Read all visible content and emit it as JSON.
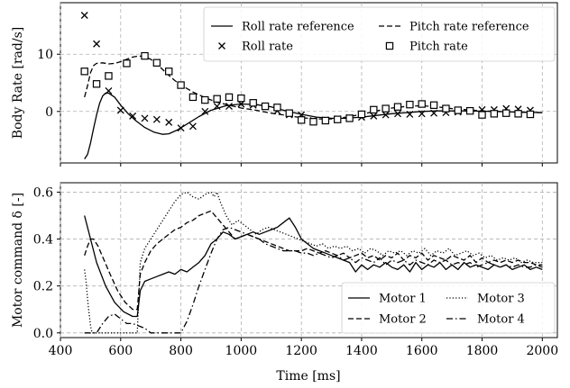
{
  "chart_data": [
    {
      "type": "line",
      "title": "",
      "xlabel": "",
      "ylabel": "Body Rate [rad/s]",
      "xlim": [
        400,
        2050
      ],
      "ylim": [
        -9,
        19
      ],
      "yticks": [
        0,
        10
      ],
      "xticks": [
        400,
        600,
        800,
        1000,
        1200,
        1400,
        1600,
        1800,
        2000
      ],
      "grid": true,
      "legend": {
        "placement": "top-right",
        "columns": 2
      },
      "series": [
        {
          "name": "Roll rate reference",
          "style": "solid",
          "marker": "none",
          "x": [
            480,
            490,
            500,
            510,
            520,
            530,
            540,
            550,
            560,
            580,
            600,
            625,
            650,
            680,
            710,
            740,
            760,
            790,
            820,
            860,
            900,
            950,
            1000,
            1050,
            1100,
            1150,
            1200,
            1250,
            1300,
            1350,
            1400,
            1450,
            1500,
            1550,
            1600,
            1650,
            1700,
            1750,
            1800,
            1850,
            1900,
            1950,
            2000
          ],
          "y": [
            -8.3,
            -7.5,
            -5.5,
            -3,
            -0.6,
            1.4,
            2.7,
            3.2,
            3.2,
            2.5,
            1.1,
            -0.4,
            -1.6,
            -2.8,
            -3.6,
            -4.0,
            -3.9,
            -3.2,
            -2.2,
            -0.9,
            0.2,
            1.0,
            1.3,
            1.2,
            0.8,
            0.1,
            -0.5,
            -1.0,
            -1.2,
            -1.2,
            -1.0,
            -0.7,
            -0.4,
            -0.2,
            0,
            0.1,
            0.1,
            0.1,
            0.05,
            0,
            -0.1,
            -0.15,
            -0.2
          ]
        },
        {
          "name": "Pitch rate reference",
          "style": "dashed",
          "marker": "none",
          "x": [
            480,
            490,
            500,
            510,
            520,
            540,
            560,
            580,
            600,
            620,
            640,
            660,
            680,
            700,
            720,
            740,
            760,
            780,
            800,
            840,
            880,
            920,
            960,
            1000,
            1050,
            1100,
            1150,
            1200,
            1250,
            1300,
            1350,
            1400,
            1450,
            1500,
            1550,
            1600,
            1650,
            1700,
            1750,
            1800,
            1850,
            1900,
            1950,
            2000
          ],
          "y": [
            2.5,
            4.5,
            6.8,
            8.0,
            8.4,
            8.5,
            8.3,
            8.4,
            8.7,
            9.1,
            9.5,
            9.7,
            9.6,
            9.1,
            8.3,
            7.3,
            6.3,
            5.4,
            4.6,
            3.4,
            2.4,
            1.6,
            1.1,
            0.6,
            0.2,
            -0.3,
            -0.7,
            -1.1,
            -1.3,
            -1.3,
            -1.0,
            -0.5,
            0.1,
            0.6,
            0.9,
            1.0,
            0.8,
            0.5,
            0.3,
            0.1,
            0,
            -0.1,
            -0.15,
            -0.2
          ]
        },
        {
          "name": "Roll rate",
          "style": "none",
          "marker": "x",
          "x": [
            480,
            520,
            560,
            600,
            640,
            680,
            720,
            760,
            800,
            840,
            880,
            920,
            960,
            1000,
            1040,
            1080,
            1120,
            1160,
            1200,
            1240,
            1280,
            1320,
            1360,
            1400,
            1440,
            1480,
            1520,
            1560,
            1600,
            1640,
            1680,
            1720,
            1760,
            1800,
            1840,
            1880,
            1920,
            1960
          ],
          "y": [
            16.8,
            11.8,
            3.6,
            0.2,
            -0.8,
            -1.2,
            -1.4,
            -1.9,
            -2.9,
            -2.6,
            0,
            0.9,
            0.9,
            1.3,
            1.1,
            0.8,
            0.1,
            -0.6,
            -0.6,
            -1.6,
            -1.5,
            -1.3,
            -1.1,
            -1.0,
            -0.8,
            -0.6,
            -0.4,
            -0.5,
            -0.4,
            -0.3,
            -0.2,
            -0.1,
            0.1,
            0.3,
            0.3,
            0.5,
            0.4,
            0.2
          ]
        },
        {
          "name": "Pitch rate",
          "style": "none",
          "marker": "square",
          "x": [
            480,
            520,
            560,
            620,
            680,
            720,
            760,
            800,
            840,
            880,
            920,
            960,
            1000,
            1040,
            1080,
            1120,
            1160,
            1200,
            1240,
            1280,
            1320,
            1360,
            1400,
            1440,
            1480,
            1520,
            1560,
            1600,
            1640,
            1680,
            1720,
            1760,
            1800,
            1840,
            1880,
            1920,
            1960
          ],
          "y": [
            7.0,
            4.8,
            6.2,
            8.4,
            9.7,
            8.5,
            7.0,
            4.6,
            2.5,
            2.0,
            2.2,
            2.5,
            2.3,
            1.5,
            0.9,
            0.7,
            -0.3,
            -1.5,
            -1.8,
            -1.6,
            -1.4,
            -1.2,
            -0.5,
            0.3,
            0.5,
            0.8,
            1.2,
            1.3,
            1.1,
            0.5,
            0.2,
            0.1,
            -0.6,
            -0.4,
            -0.3,
            -0.4,
            -0.5
          ]
        }
      ]
    },
    {
      "type": "line",
      "title": "",
      "xlabel": "Time [ms]",
      "ylabel": "Motor command δ [-]",
      "xlim": [
        400,
        2050
      ],
      "ylim": [
        -0.02,
        0.64
      ],
      "yticks": [
        0.0,
        0.2,
        0.4,
        0.6
      ],
      "xticks": [
        400,
        600,
        800,
        1000,
        1200,
        1400,
        1600,
        1800,
        2000
      ],
      "grid": true,
      "legend": {
        "placement": "bottom-right",
        "columns": 2
      },
      "series": [
        {
          "name": "Motor 1",
          "style": "solid",
          "x": [
            480,
            500,
            520,
            550,
            580,
            610,
            640,
            655,
            665,
            680,
            700,
            720,
            740,
            760,
            780,
            800,
            820,
            840,
            860,
            880,
            900,
            920,
            940,
            960,
            980,
            1000,
            1020,
            1040,
            1060,
            1080,
            1100,
            1120,
            1140,
            1160,
            1180,
            1200,
            1220,
            1240,
            1260,
            1280,
            1300,
            1320,
            1340,
            1360,
            1380,
            1400,
            1420,
            1440,
            1460,
            1480,
            1500,
            1520,
            1540,
            1560,
            1580,
            1600,
            1620,
            1640,
            1660,
            1680,
            1700,
            1720,
            1740,
            1760,
            1780,
            1800,
            1820,
            1840,
            1860,
            1880,
            1900,
            1920,
            1940,
            1960,
            1980,
            2000
          ],
          "y": [
            0.5,
            0.4,
            0.3,
            0.2,
            0.13,
            0.09,
            0.07,
            0.07,
            0.18,
            0.22,
            0.23,
            0.24,
            0.25,
            0.26,
            0.25,
            0.27,
            0.26,
            0.28,
            0.3,
            0.33,
            0.38,
            0.4,
            0.43,
            0.42,
            0.4,
            0.41,
            0.42,
            0.43,
            0.42,
            0.43,
            0.44,
            0.45,
            0.47,
            0.49,
            0.45,
            0.4,
            0.38,
            0.36,
            0.35,
            0.34,
            0.33,
            0.32,
            0.31,
            0.3,
            0.26,
            0.29,
            0.27,
            0.29,
            0.28,
            0.3,
            0.28,
            0.27,
            0.29,
            0.26,
            0.3,
            0.27,
            0.29,
            0.28,
            0.3,
            0.27,
            0.29,
            0.27,
            0.3,
            0.28,
            0.29,
            0.28,
            0.27,
            0.29,
            0.28,
            0.29,
            0.27,
            0.28,
            0.29,
            0.27,
            0.28,
            0.27
          ]
        },
        {
          "name": "Motor 2",
          "style": "dashed",
          "x": [
            480,
            490,
            500,
            510,
            525,
            545,
            565,
            590,
            615,
            640,
            655,
            665,
            680,
            700,
            720,
            740,
            760,
            780,
            800,
            820,
            840,
            860,
            880,
            900,
            920,
            940,
            960,
            980,
            1000,
            1020,
            1040,
            1060,
            1080,
            1100,
            1120,
            1140,
            1160,
            1180,
            1200,
            1220,
            1240,
            1260,
            1280,
            1300,
            1320,
            1340,
            1360,
            1380,
            1400,
            1420,
            1440,
            1460,
            1480,
            1500,
            1520,
            1540,
            1560,
            1580,
            1600,
            1620,
            1640,
            1660,
            1680,
            1700,
            1720,
            1740,
            1760,
            1780,
            1800,
            1820,
            1840,
            1860,
            1880,
            1900,
            1920,
            1940,
            1960,
            1980,
            2000
          ],
          "y": [
            0.33,
            0.37,
            0.4,
            0.4,
            0.37,
            0.31,
            0.25,
            0.18,
            0.13,
            0.1,
            0.1,
            0.25,
            0.3,
            0.35,
            0.38,
            0.4,
            0.42,
            0.44,
            0.45,
            0.47,
            0.48,
            0.5,
            0.51,
            0.52,
            0.49,
            0.46,
            0.43,
            0.4,
            0.41,
            0.42,
            0.41,
            0.4,
            0.39,
            0.38,
            0.37,
            0.36,
            0.35,
            0.35,
            0.35,
            0.36,
            0.35,
            0.34,
            0.35,
            0.34,
            0.33,
            0.34,
            0.32,
            0.33,
            0.34,
            0.32,
            0.33,
            0.31,
            0.33,
            0.32,
            0.34,
            0.31,
            0.33,
            0.32,
            0.34,
            0.31,
            0.33,
            0.32,
            0.31,
            0.33,
            0.32,
            0.31,
            0.33,
            0.3,
            0.32,
            0.3,
            0.31,
            0.3,
            0.31,
            0.3,
            0.31,
            0.3,
            0.3,
            0.29,
            0.29
          ]
        },
        {
          "name": "Motor 3",
          "style": "dotted",
          "x": [
            480,
            485,
            492,
            500,
            505,
            540,
            600,
            640,
            655,
            665,
            680,
            700,
            720,
            740,
            760,
            780,
            800,
            820,
            840,
            860,
            880,
            900,
            910,
            920,
            930,
            950,
            970,
            990,
            1010,
            1030,
            1050,
            1070,
            1090,
            1110,
            1130,
            1150,
            1170,
            1190,
            1210,
            1230,
            1250,
            1270,
            1290,
            1310,
            1330,
            1350,
            1370,
            1390,
            1410,
            1430,
            1450,
            1470,
            1490,
            1510,
            1530,
            1550,
            1570,
            1590,
            1610,
            1630,
            1650,
            1670,
            1690,
            1710,
            1730,
            1750,
            1770,
            1790,
            1810,
            1830,
            1850,
            1870,
            1890,
            1910,
            1930,
            1950,
            1970,
            2000
          ],
          "y": [
            0.27,
            0.22,
            0.12,
            0.03,
            0.0,
            0.0,
            0.0,
            0.0,
            0.0,
            0.3,
            0.36,
            0.4,
            0.44,
            0.48,
            0.52,
            0.56,
            0.59,
            0.6,
            0.58,
            0.57,
            0.59,
            0.6,
            0.58,
            0.6,
            0.56,
            0.5,
            0.46,
            0.48,
            0.46,
            0.44,
            0.42,
            0.44,
            0.45,
            0.44,
            0.43,
            0.42,
            0.41,
            0.4,
            0.39,
            0.38,
            0.37,
            0.38,
            0.36,
            0.37,
            0.36,
            0.37,
            0.35,
            0.36,
            0.34,
            0.36,
            0.35,
            0.33,
            0.35,
            0.34,
            0.35,
            0.33,
            0.35,
            0.34,
            0.36,
            0.33,
            0.35,
            0.34,
            0.36,
            0.33,
            0.34,
            0.35,
            0.33,
            0.34,
            0.32,
            0.33,
            0.31,
            0.32,
            0.31,
            0.32,
            0.3,
            0.31,
            0.3,
            0.3
          ]
        },
        {
          "name": "Motor 4",
          "style": "dashdot",
          "x": [
            480,
            520,
            540,
            560,
            580,
            600,
            620,
            640,
            660,
            680,
            700,
            720,
            740,
            760,
            780,
            800,
            820,
            840,
            860,
            880,
            900,
            920,
            940,
            960,
            980,
            1000,
            1020,
            1040,
            1060,
            1080,
            1100,
            1120,
            1140,
            1160,
            1180,
            1200,
            1220,
            1240,
            1260,
            1280,
            1300,
            1320,
            1340,
            1360,
            1380,
            1400,
            1420,
            1440,
            1460,
            1480,
            1500,
            1520,
            1540,
            1560,
            1580,
            1600,
            1620,
            1640,
            1660,
            1680,
            1700,
            1720,
            1740,
            1760,
            1780,
            1800,
            1820,
            1840,
            1860,
            1880,
            1900,
            1920,
            1940,
            1960,
            1980,
            2000
          ],
          "y": [
            0.0,
            0.0,
            0.04,
            0.07,
            0.08,
            0.06,
            0.04,
            0.04,
            0.03,
            0.02,
            0.0,
            0.0,
            0.0,
            0.0,
            0.0,
            0.0,
            0.05,
            0.12,
            0.2,
            0.27,
            0.34,
            0.4,
            0.44,
            0.45,
            0.44,
            0.43,
            0.42,
            0.41,
            0.4,
            0.38,
            0.37,
            0.36,
            0.35,
            0.35,
            0.35,
            0.34,
            0.34,
            0.33,
            0.34,
            0.33,
            0.32,
            0.33,
            0.31,
            0.32,
            0.3,
            0.32,
            0.31,
            0.3,
            0.32,
            0.29,
            0.31,
            0.3,
            0.31,
            0.29,
            0.31,
            0.3,
            0.29,
            0.31,
            0.3,
            0.31,
            0.29,
            0.3,
            0.29,
            0.3,
            0.28,
            0.29,
            0.3,
            0.29,
            0.28,
            0.29,
            0.28,
            0.29,
            0.28,
            0.28,
            0.29,
            0.28
          ]
        }
      ]
    }
  ]
}
